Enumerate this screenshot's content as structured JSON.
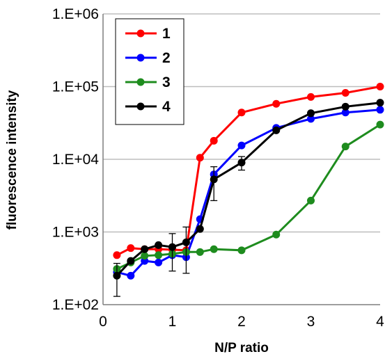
{
  "chart_data": {
    "type": "line",
    "xlabel": "N/P ratio",
    "ylabel": "fluorescence intensity",
    "yscale": "log",
    "xlim": [
      0,
      4
    ],
    "ylim": [
      100,
      1000000
    ],
    "grid": "horizontal",
    "legend_position": "top-left",
    "x_ticks": [
      0,
      1,
      2,
      3,
      4
    ],
    "x_tick_labels": [
      "0",
      "1",
      "2",
      "3",
      "4"
    ],
    "y_ticks": [
      100,
      1000,
      10000,
      100000,
      1000000
    ],
    "y_tick_labels": [
      "1.E+02",
      "1.E+03",
      "1.E+04",
      "1.E+05",
      "1.E+06"
    ],
    "series": [
      {
        "name": "1",
        "color": "#ff0000",
        "x": [
          0.2,
          0.4,
          0.6,
          0.8,
          1.0,
          1.2,
          1.4,
          1.6,
          2.0,
          2.5,
          3.0,
          3.5,
          4.0
        ],
        "y": [
          480,
          600,
          580,
          580,
          570,
          560,
          10500,
          18000,
          44000,
          58000,
          72000,
          82000,
          100000
        ]
      },
      {
        "name": "2",
        "color": "#0000ff",
        "x": [
          0.2,
          0.4,
          0.6,
          0.8,
          1.0,
          1.2,
          1.4,
          1.6,
          2.0,
          2.5,
          3.0,
          3.5,
          4.0
        ],
        "y": [
          280,
          250,
          400,
          380,
          480,
          450,
          1500,
          6200,
          15500,
          27000,
          36000,
          44000,
          48000
        ]
      },
      {
        "name": "3",
        "color": "#1e8c1e",
        "x": [
          0.2,
          0.4,
          0.6,
          0.8,
          1.0,
          1.2,
          1.4,
          1.6,
          2.0,
          2.5,
          3.0,
          3.5,
          4.0
        ],
        "y": [
          310,
          380,
          470,
          480,
          500,
          530,
          530,
          580,
          560,
          920,
          2700,
          15000,
          30000
        ]
      },
      {
        "name": "4",
        "color": "#000000",
        "x": [
          0.2,
          0.4,
          0.6,
          0.8,
          1.0,
          1.2,
          1.4,
          1.6,
          2.0,
          2.5,
          3.0,
          3.5,
          4.0
        ],
        "y": [
          250,
          400,
          580,
          660,
          620,
          720,
          1100,
          5300,
          9000,
          25000,
          43000,
          53000,
          60000
        ],
        "error": [
          120,
          0,
          0,
          0,
          330,
          450,
          0,
          2600,
          1900,
          0,
          0,
          0,
          0
        ]
      }
    ]
  }
}
